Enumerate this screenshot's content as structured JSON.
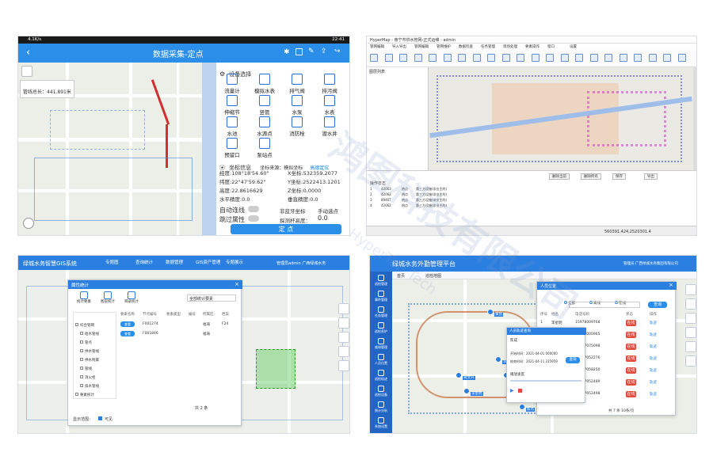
{
  "panel1": {
    "status_left": "4.1K/s",
    "status_right": "22:41",
    "title": "数据采集-定点",
    "pipe_length_label": "管线总长：",
    "pipe_length_value": "441.891米",
    "device_section_title": "设备选择",
    "devices": [
      "流量计",
      "模拟水表",
      "排气阀",
      "排污阀",
      "伸缩节",
      "竖管",
      "水泵",
      "水表",
      "水池",
      "水源点",
      "消防栓",
      "潜水井",
      "预留口",
      "泵站点"
    ],
    "coord_section_title": "坐标信息",
    "coord_source_label": "坐标来源：模拟坐标",
    "coord_source_action": "高德定位",
    "lon": "经度:108°18'54.60\"",
    "lat": "纬度:22°47'59.62\"",
    "alt": "高度:22.8616629",
    "hacc": "水平精度:0.0",
    "x": "X坐标:532359.2077",
    "y": "Y坐标:2522413.1201",
    "z": "Z坐标:0.0000",
    "vacc": "垂直精度:0.0",
    "auto_connect_label": "自动连线",
    "bt_label": "非蓝牙坐标",
    "manual_select": "手动选点",
    "skip_attr_label": "跳过属性",
    "probe_height_label": "探测杆高度：",
    "probe_height_value": "0.0",
    "submit_label": "定 点"
  },
  "panel2": {
    "title": "HyperMap - 南宁市供水管网-正式运维 - admin",
    "menus": [
      "管网编辑",
      "导入导出",
      "管网编辑",
      "管网维护",
      "数据检查",
      "任务管理",
      "现场处理",
      "要素操作",
      "窗口",
      "设置"
    ],
    "layer_panel_title": "图层列表",
    "log_title": "操作日志",
    "buttons": [
      "删除当前",
      "删除所有",
      "保存",
      "导出"
    ],
    "log_rows": [
      [
        "1",
        "42063",
        "热点",
        "第三方设施(非业主的)"
      ],
      [
        "2",
        "42062",
        "热点",
        "第三方设施(非业主的)"
      ],
      [
        "3",
        "89467",
        "热点",
        "第三方设施(非业主的)"
      ],
      [
        "4",
        "42062",
        "热点",
        "第三方设施(非业主的)"
      ]
    ],
    "status_coords": "560391.424,2520301.4"
  },
  "panel3": {
    "app_title": "绿城水务智慧GIS系统",
    "nav": [
      "专题图",
      "查询统计",
      "数据管理",
      "GIS资产管理",
      "专题展示"
    ],
    "user": "管理员admin 广西绿城水务",
    "dialog_title": "属性统计",
    "tabs": [
      "统计要素",
      "图层统计",
      "目录统计"
    ],
    "select_placeholder": "全部统计要素",
    "tree_items": [
      "综合管网",
      "给水管线",
      "管点",
      "供水管线",
      "供水附属",
      "管线",
      "消火栓",
      "排水管线",
      "要素统计"
    ],
    "table_headers": [
      "要素名称",
      "节点编号",
      "要素类型",
      "编号",
      "所属区",
      "档案"
    ],
    "table_rows": [
      [
        "查看",
        "F001274",
        "",
        "",
        "福海",
        "F24"
      ],
      [
        "查看",
        "F001846",
        "",
        "",
        "福海",
        ""
      ]
    ],
    "pager": "共 2 条",
    "footer_label": "显示范围：",
    "footer_option": "可见"
  },
  "panel4": {
    "app_title": "绿城水务外勤管理平台",
    "user": "管理员·广西绿城水务集团有限公司",
    "sidebar": [
      "巡检管理",
      "事件管理",
      "任务管理",
      "巡检养护",
      "维修管理",
      "人员位置",
      "巡检轨迹",
      "巡检设备",
      "统计分析",
      "系统设置"
    ],
    "tabs": [
      "首页",
      "巡检地图"
    ],
    "person_panel_title": "人员位置",
    "person_tabs": [
      "全部",
      "离线",
      "在线"
    ],
    "person_search_btn": "查询",
    "person_headers": [
      "序号",
      "姓名",
      "电话号码",
      "状态",
      "操作"
    ],
    "persons": [
      [
        "1",
        "李星明",
        "15978009768",
        "在线",
        "轨迹"
      ],
      [
        "2",
        "黄文兴",
        "15677000965",
        "在线",
        "轨迹"
      ],
      [
        "3",
        "谢正阳",
        "15677075098",
        "在线",
        "轨迹"
      ],
      [
        "4",
        "张帆",
        "15677052276",
        "在线",
        "轨迹"
      ],
      [
        "5",
        "苏航",
        "15677058250",
        "在线",
        "轨迹"
      ],
      [
        "6",
        "陈杰",
        "15677052489",
        "在线",
        "轨迹"
      ],
      [
        "7",
        "李成",
        "15677052498",
        "在线",
        "轨迹"
      ]
    ],
    "person_footer": "共 7 条 10条/页",
    "trace_dialog_title": "人员轨迹查询",
    "trace_person": "陈成",
    "trace_fields": [
      "开始时间：2021-04-01 000000",
      "结束时间：2021-04-11 235959"
    ],
    "trace_query_btn": "查询",
    "trace_playback": "播放速度",
    "map_labels": [
      "黄凯",
      "李成",
      "黄文兴",
      "李成兴",
      "李星明",
      "陈杰"
    ]
  },
  "watermark": "鸿图科技有限公司",
  "watermark_en": "HyperTop Tech"
}
